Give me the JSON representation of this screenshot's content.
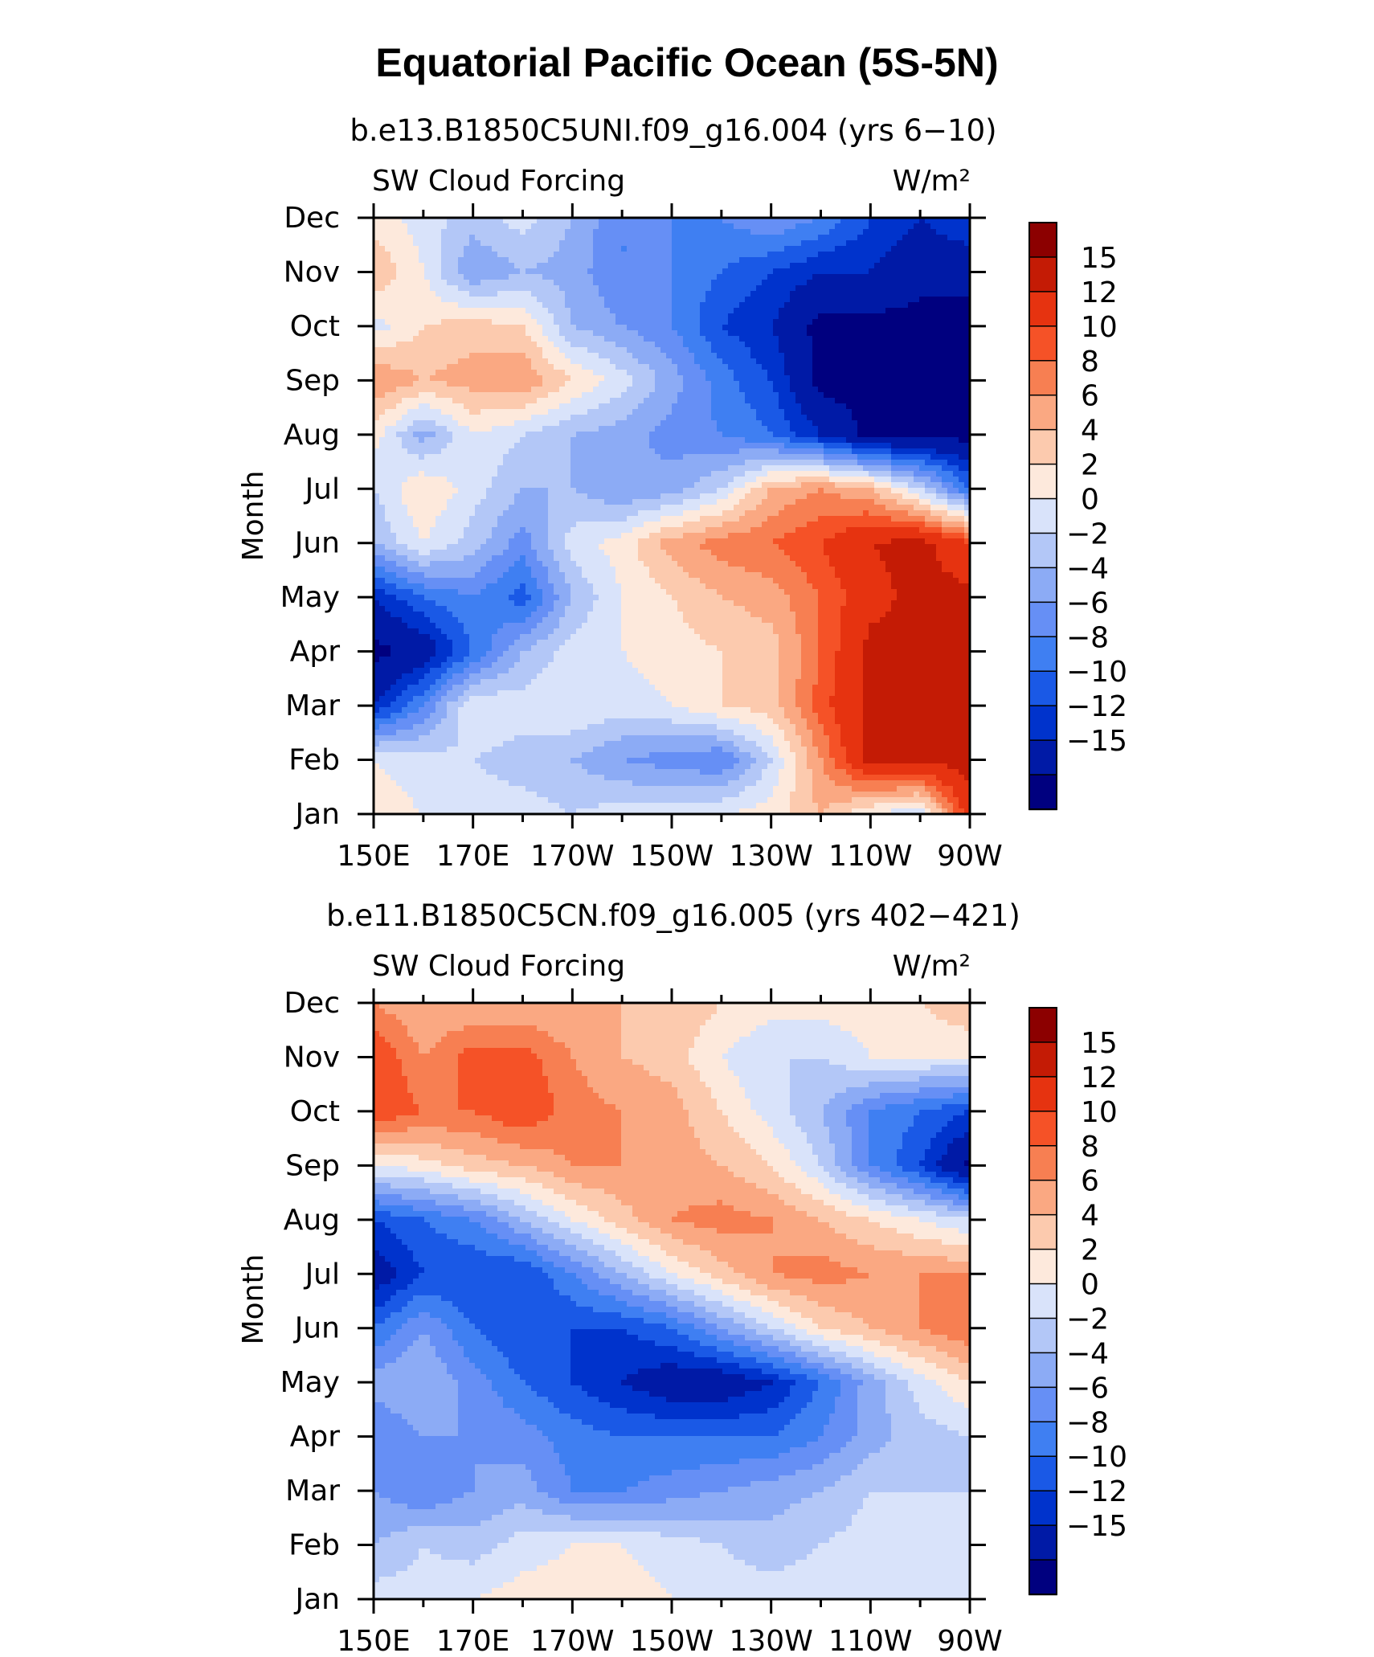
{
  "title": "Equatorial Pacific Ocean (5S-5N)",
  "colors": [
    "#00007f",
    "#001aa6",
    "#0033cc",
    "#1a59e6",
    "#3f7ff2",
    "#668ff5",
    "#8cabf5",
    "#b3c7f7",
    "#d9e3fa",
    "#fde9dc",
    "#fccaae",
    "#faa882",
    "#f77f52",
    "#f55227",
    "#e63310",
    "#c41b05",
    "#8c0000"
  ],
  "chart_data": [
    {
      "type": "heatmap",
      "subtitle": "b.e13.B1850C5UNI.f09_g16.004 (yrs 6−10)",
      "left_label": "SW Cloud Forcing",
      "right_label": "W/m²",
      "ylabel": "Month",
      "xlabel": "",
      "x": [
        150,
        160,
        170,
        180,
        190,
        200,
        210,
        220,
        230,
        240,
        250,
        260,
        270
      ],
      "x_tick_labels": [
        "150E",
        "170E",
        "170W",
        "150W",
        "130W",
        "110W",
        "90W"
      ],
      "y": [
        "Jan",
        "Feb",
        "Mar",
        "Apr",
        "May",
        "Jun",
        "Jul",
        "Aug",
        "Sep",
        "Oct",
        "Nov",
        "Dec"
      ],
      "levels": [
        -15,
        -12,
        -10,
        -8,
        -6,
        -4,
        -2,
        0,
        2,
        4,
        6,
        8,
        10,
        12,
        15
      ],
      "colorbar_labels": [
        "15",
        "12",
        "10",
        "8",
        "6",
        "4",
        "2",
        "0",
        "−2",
        "−4",
        "−6",
        "−8",
        "−10",
        "−12",
        "−15"
      ],
      "z": [
        [
          3,
          2,
          1,
          1,
          0,
          1,
          1,
          2,
          3,
          6,
          2,
          0,
          14
        ],
        [
          2,
          1,
          0,
          -1,
          -2,
          -4,
          -5,
          -6,
          0,
          8,
          16,
          16,
          16
        ],
        [
          -12,
          -6,
          2,
          1,
          2,
          1,
          2,
          4,
          5,
          11,
          16,
          16,
          16
        ],
        [
          -16,
          -14,
          -8,
          -2,
          1,
          2,
          3,
          4,
          5,
          10,
          16,
          16,
          16
        ],
        [
          -12,
          -8,
          -6,
          -9,
          -2,
          2,
          4,
          6,
          7,
          10,
          14,
          16,
          16
        ],
        [
          -2,
          2,
          -1,
          -5,
          1,
          3,
          7,
          9,
          10,
          12,
          15,
          16,
          12
        ],
        [
          0,
          4,
          1,
          -2,
          -2,
          -4,
          -3,
          0,
          6,
          8,
          6,
          0,
          -8
        ],
        [
          3,
          -3,
          2,
          0,
          -2,
          -3,
          -5,
          -6,
          -8,
          -12,
          -16,
          -16,
          -16
        ],
        [
          8,
          6,
          7,
          8,
          4,
          1,
          -3,
          -7,
          -10,
          -16,
          -16,
          -16,
          -16
        ],
        [
          1,
          4,
          5,
          4,
          -2,
          -4,
          -6,
          -10,
          -12,
          -16,
          -16,
          -16,
          -16
        ],
        [
          6,
          2,
          -4,
          -2,
          -3,
          -6,
          -6,
          -8,
          -10,
          -12,
          -12,
          -14,
          -14
        ],
        [
          3,
          1,
          -1,
          1,
          -2,
          -6,
          -6,
          -6,
          -4,
          -6,
          -10,
          -12,
          -10
        ]
      ]
    },
    {
      "type": "heatmap",
      "subtitle": "b.e11.B1850C5CN.f09_g16.005 (yrs 402−421)",
      "left_label": "SW Cloud Forcing",
      "right_label": "W/m²",
      "ylabel": "Month",
      "xlabel": "",
      "x": [
        150,
        160,
        170,
        180,
        190,
        200,
        210,
        220,
        230,
        240,
        250,
        260,
        270
      ],
      "x_tick_labels": [
        "150E",
        "170E",
        "170W",
        "150W",
        "130W",
        "110W",
        "90W"
      ],
      "y": [
        "Jan",
        "Feb",
        "Mar",
        "Apr",
        "May",
        "Jun",
        "Jul",
        "Aug",
        "Sep",
        "Oct",
        "Nov",
        "Dec"
      ],
      "levels": [
        -15,
        -12,
        -10,
        -8,
        -6,
        -4,
        -2,
        0,
        2,
        4,
        6,
        8,
        10,
        12,
        15
      ],
      "colorbar_labels": [
        "15",
        "12",
        "10",
        "8",
        "6",
        "4",
        "2",
        "0",
        "−2",
        "−4",
        "−6",
        "−8",
        "−10",
        "−12",
        "−15"
      ],
      "z": [
        [
          1,
          1,
          2,
          3,
          3,
          3,
          2,
          1,
          1,
          1,
          1,
          1,
          2
        ],
        [
          -2,
          0,
          -1,
          1,
          2,
          2,
          1,
          0,
          -1,
          0,
          1,
          1,
          0
        ],
        [
          -4,
          -6,
          -4,
          -3,
          -6,
          -6,
          -5,
          -4,
          -3,
          -2,
          0,
          0,
          0
        ],
        [
          -6,
          -4,
          -4,
          -5,
          -7,
          -8,
          -8,
          -8,
          -8,
          -6,
          -3,
          -1,
          0
        ],
        [
          -3,
          -2,
          -5,
          -8,
          -10,
          -12,
          -14,
          -14,
          -12,
          -8,
          -3,
          1,
          4
        ],
        [
          -8,
          -4,
          -8,
          -10,
          -10,
          -10,
          -8,
          -4,
          0,
          4,
          6,
          8,
          10
        ],
        [
          -14,
          -10,
          -10,
          -10,
          -6,
          -2,
          2,
          5,
          8,
          9,
          8,
          8,
          8
        ],
        [
          -10,
          -8,
          -6,
          -2,
          2,
          5,
          8,
          9,
          8,
          6,
          4,
          2,
          0
        ],
        [
          2,
          3,
          5,
          6,
          8,
          8,
          7,
          6,
          4,
          0,
          -6,
          -10,
          -16
        ],
        [
          12,
          10,
          10,
          12,
          9,
          8,
          7,
          4,
          1,
          -2,
          -6,
          -8,
          -10
        ],
        [
          12,
          8,
          11,
          11,
          8,
          6,
          5,
          2,
          0,
          0,
          2,
          2,
          2
        ],
        [
          8,
          6,
          6,
          6,
          6,
          6,
          6,
          4,
          3,
          3,
          3,
          4,
          6
        ]
      ]
    }
  ]
}
